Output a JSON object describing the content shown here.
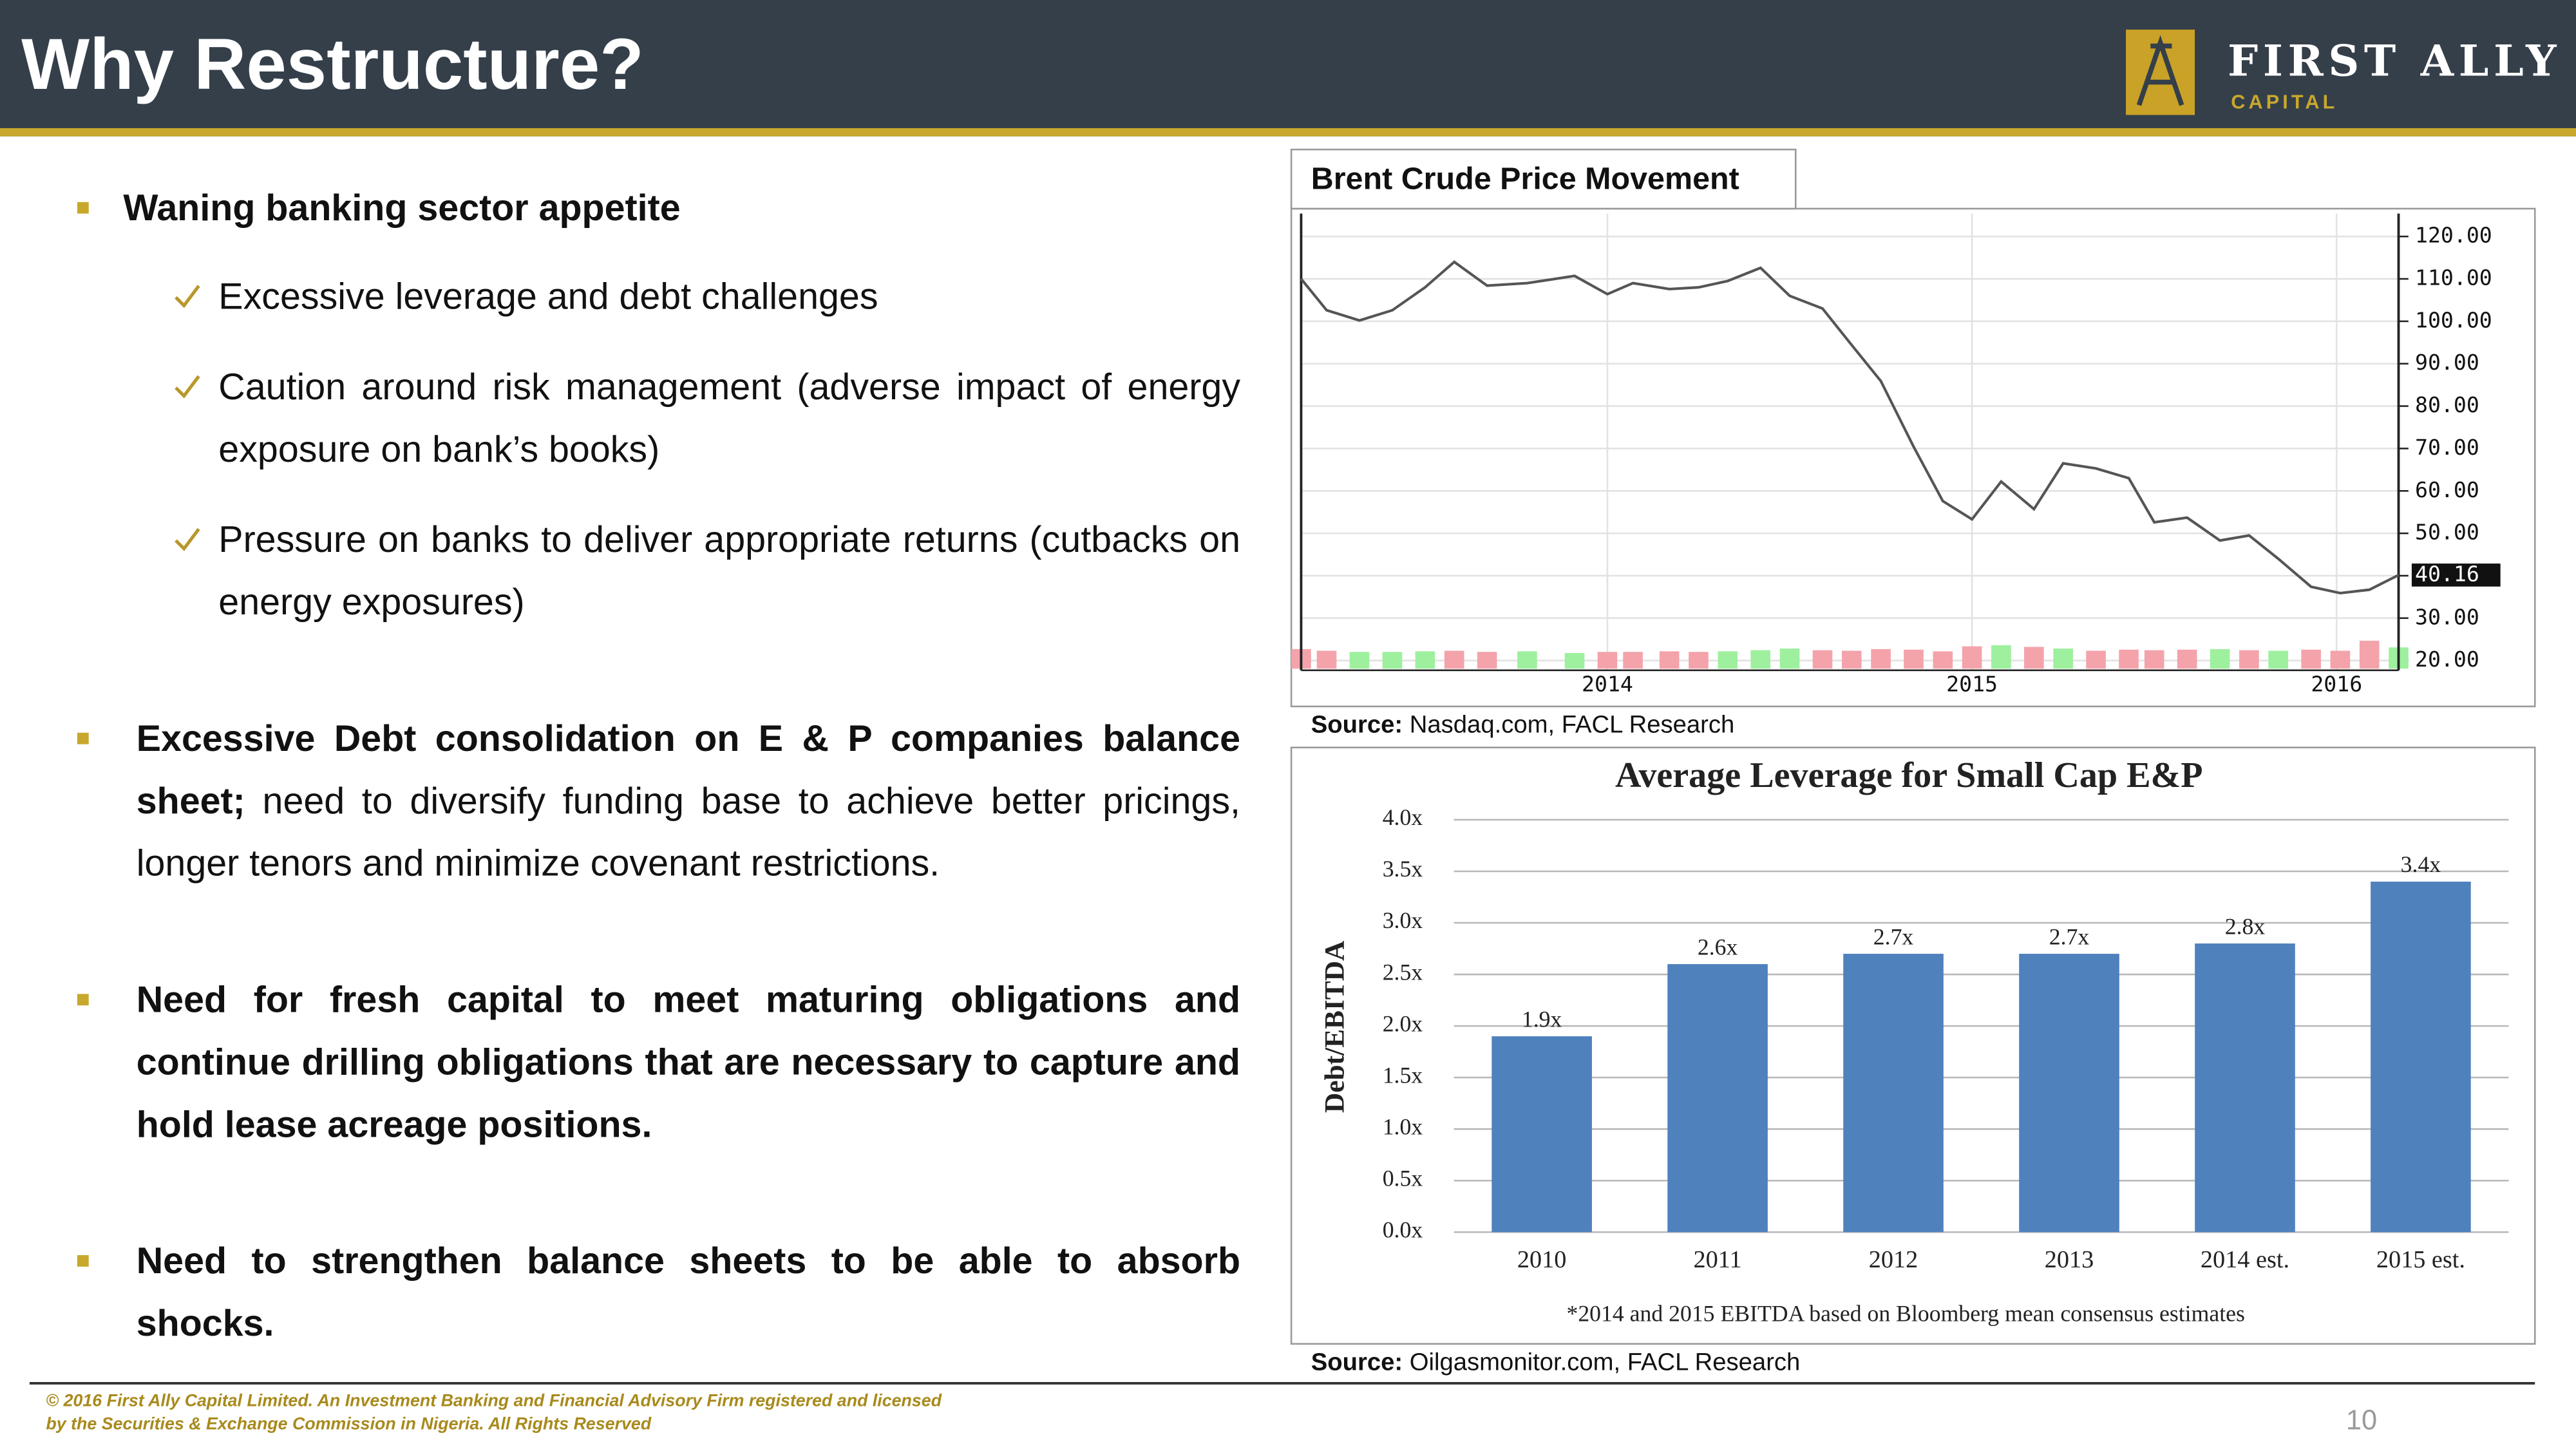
{
  "header": {
    "title": "Why Restructure?",
    "logo": {
      "name": "FIRST ALLY",
      "tagline": "CAPITAL"
    }
  },
  "bullets": [
    {
      "text": "Waning banking sector appetite",
      "items": [
        "Excessive leverage and debt challenges",
        "Caution around risk management (adverse impact of energy exposure on bank’s books)",
        "Pressure on banks to deliver appropriate returns (cutbacks on energy exposures)"
      ]
    },
    {
      "bold": "Excessive Debt consolidation on E & P companies balance sheet;",
      "text": "need to diversify funding base to achieve better pricings, longer tenors and minimize covenant restrictions."
    },
    {
      "bold": "Need for fresh capital to meet maturing obligations and continue drilling obligations that are necessary to capture and hold lease acreage positions."
    },
    {
      "bold": "Need to strengthen balance sheets to be able to absorb shocks."
    }
  ],
  "chart_data": [
    {
      "type": "line",
      "title": "Brent Crude Price Movement",
      "x": [
        2013.16,
        2013.23,
        2013.32,
        2013.41,
        2013.5,
        2013.58,
        2013.67,
        2013.78,
        2013.91,
        2014.0,
        2014.07,
        2014.17,
        2014.25,
        2014.33,
        2014.42,
        2014.5,
        2014.59,
        2014.67,
        2014.75,
        2014.84,
        2014.92,
        2015.0,
        2015.08,
        2015.17,
        2015.25,
        2015.34,
        2015.43,
        2015.5,
        2015.59,
        2015.68,
        2015.76,
        2015.84,
        2015.93,
        2016.01,
        2016.09,
        2016.17
      ],
      "xlim": [
        2013.16,
        2016.17
      ],
      "xticks": [
        2014,
        2015,
        2016
      ],
      "series": [
        {
          "color": "#555555",
          "values": [
            110,
            102.6,
            100.2,
            102.6,
            108,
            114,
            108.4,
            109,
            110.7,
            106.4,
            109,
            107.6,
            108,
            109.5,
            112.6,
            106,
            103,
            94.4,
            85.9,
            70.4,
            57.6,
            53.3,
            62.2,
            55.7,
            66.5,
            65.3,
            63,
            52.6,
            53.7,
            48.3,
            49.5,
            44,
            37.4,
            35.9,
            36.7,
            40.16
          ]
        }
      ],
      "volume": {
        "values": [
          3.5,
          3.2,
          3.0,
          3.0,
          3.1,
          3.2,
          3.0,
          3.1,
          2.8,
          3.0,
          3.0,
          3.1,
          3.0,
          3.1,
          3.3,
          3.6,
          3.3,
          3.2,
          3.5,
          3.4,
          3.1,
          4.0,
          4.2,
          3.9,
          3.6,
          3.2,
          3.4,
          3.3,
          3.4,
          3.5,
          3.3,
          3.2,
          3.4,
          3.2,
          5.0,
          3.8
        ],
        "colors": [
          "#f4a3ab",
          "#f4a3ab",
          "#9ef09e",
          "#9ef09e",
          "#9ef09e",
          "#f4a3ab",
          "#f4a3ab",
          "#9ef09e",
          "#9ef09e",
          "#f4a3ab",
          "#f4a3ab",
          "#f4a3ab",
          "#f4a3ab",
          "#9ef09e",
          "#9ef09e",
          "#9ef09e",
          "#f4a3ab",
          "#f4a3ab",
          "#f4a3ab",
          "#f4a3ab",
          "#f4a3ab",
          "#f4a3ab",
          "#9ef09e",
          "#f4a3ab",
          "#9ef09e",
          "#f4a3ab",
          "#f4a3ab",
          "#f4a3ab",
          "#f4a3ab",
          "#9ef09e",
          "#f4a3ab",
          "#9ef09e",
          "#f4a3ab",
          "#f4a3ab",
          "#f4a3ab",
          "#9ef09e"
        ]
      },
      "ylim": [
        17.7,
        125.4
      ],
      "yticks": [
        {
          "value": 20,
          "label": "20.00"
        },
        {
          "value": 30,
          "label": "30.00"
        },
        {
          "value": 40,
          "label": "40.00"
        },
        {
          "value": 50,
          "label": "50.00"
        },
        {
          "value": 60,
          "label": "60.00"
        },
        {
          "value": 70,
          "label": "70.00"
        },
        {
          "value": 80,
          "label": "80.00"
        },
        {
          "value": 90,
          "label": "90.00"
        },
        {
          "value": 100,
          "label": "100.00"
        },
        {
          "value": 110,
          "label": "110.00"
        },
        {
          "value": 120,
          "label": "120.00"
        }
      ],
      "grid": true,
      "source": {
        "label": "Source:",
        "text": "Nasdaq.com, FACL Research"
      }
    },
    {
      "type": "bar",
      "title": "Average Leverage for Small Cap E&P",
      "ylabel": "Debt/EBITDA",
      "categories": [
        "2010",
        "2011",
        "2012",
        "2013",
        "2014 est.",
        "2015 est."
      ],
      "values": [
        1.9,
        2.6,
        2.7,
        2.7,
        2.8,
        3.4
      ],
      "value_labels": [
        "1.9x",
        "2.6x",
        "2.7x",
        "2.7x",
        "2.8x",
        "3.4x"
      ],
      "color": "#4f81bd",
      "ylim": [
        0,
        4
      ],
      "yticks": [
        {
          "value": 0,
          "label": "0.0x"
        },
        {
          "value": 0.5,
          "label": "0.5x"
        },
        {
          "value": 1,
          "label": "1.0x"
        },
        {
          "value": 1.5,
          "label": "1.5x"
        },
        {
          "value": 2,
          "label": "2.0x"
        },
        {
          "value": 2.5,
          "label": "2.5x"
        },
        {
          "value": 3,
          "label": "3.0x"
        },
        {
          "value": 3.5,
          "label": "3.5x"
        },
        {
          "value": 4,
          "label": "4.0x"
        }
      ],
      "grid": true,
      "note": "*2014 and 2015 EBITDA based on Bloomberg mean consensus estimates",
      "source": {
        "label": "Source:",
        "text": "Oilgasmonitor.com, FACL Research"
      }
    }
  ],
  "footer": {
    "copyright": "© 2016 First Ally Capital Limited. An Investment Banking and Financial Advisory Firm registered and licensed by the Securities & Exchange Commission in Nigeria. All Rights Reserved",
    "page": "10"
  }
}
